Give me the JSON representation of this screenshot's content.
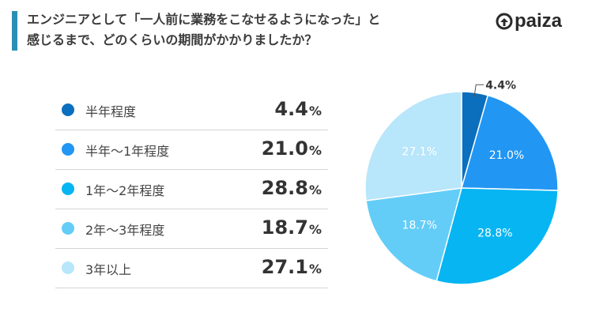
{
  "header": {
    "title_line1": "エンジニアとして「一人前に業務をこなせるようになった」と",
    "title_line2": "感じるまで、どのくらいの期間がかかりましたか？"
  },
  "logo": {
    "text": "paiza"
  },
  "chart_data": {
    "type": "pie",
    "unit": "%",
    "categories": [
      "半年程度",
      "半年～1年程度",
      "1年～2年程度",
      "2年～3年程度",
      "3年以上"
    ],
    "values": [
      4.4,
      21.0,
      28.8,
      18.7,
      27.1
    ],
    "value_labels": [
      "4.4",
      "21.0",
      "28.8",
      "18.7",
      "27.1"
    ],
    "slice_labels": [
      "4.4%",
      "21.0%",
      "28.8%",
      "18.7%",
      "27.1%"
    ],
    "colors": [
      "#0b6fbe",
      "#2196f3",
      "#06b5f2",
      "#63cdf8",
      "#b8e6fb"
    ],
    "label_colors": [
      "#333333",
      "#ffffff",
      "#ffffff",
      "#ffffff",
      "#ffffff"
    ],
    "start_angle_deg": 0,
    "direction": "clockwise",
    "legend_position": "left"
  },
  "icons": {
    "logo_mark": "paiza-logo-icon"
  }
}
